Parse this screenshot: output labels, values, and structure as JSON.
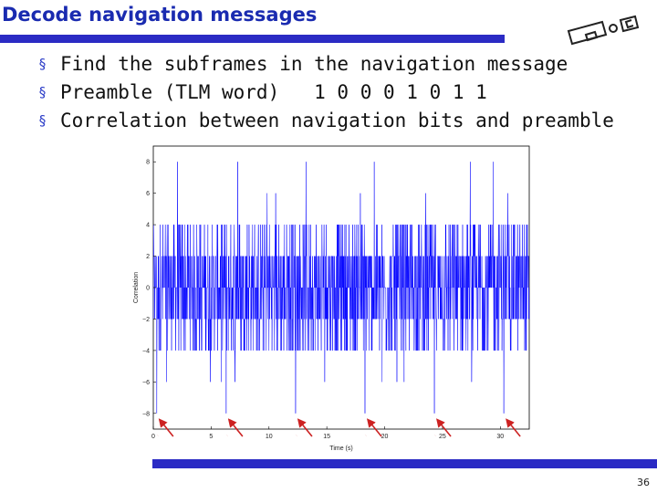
{
  "slide": {
    "title": "Decode navigation messages",
    "bullets": [
      {
        "marker": "§",
        "text": "Find the subframes in the navigation message"
      },
      {
        "marker": "§",
        "text": "Preamble (TLM word)   1 0 0 0 1 0 1 1"
      },
      {
        "marker": "§",
        "text": "Correlation between navigation bits and preamble"
      }
    ],
    "page_number": "36",
    "logo_icon": "logo-icon"
  },
  "colors": {
    "title": "#1a2bb0",
    "bar": "#2b2bc4",
    "signal": "#0000ff",
    "arrow": "#cc2222"
  },
  "chart_data": {
    "type": "line",
    "xlabel": "Time (s)",
    "ylabel": "Correlation",
    "xlim": [
      0,
      32.5
    ],
    "ylim": [
      -9,
      9
    ],
    "xticks": [
      0,
      5,
      10,
      15,
      20,
      25,
      30
    ],
    "yticks": [
      -8,
      -6,
      -4,
      -2,
      0,
      2,
      4,
      6,
      8
    ],
    "sample_period_s": 0.02,
    "levels": [
      -8,
      -6,
      -4,
      -2,
      0,
      2,
      4,
      6,
      8
    ],
    "typical_range": [
      -4,
      4
    ],
    "sidelobe_peaks": [
      -6,
      6
    ],
    "preamble_peaks": [
      {
        "x": 0.3,
        "y": -8
      },
      {
        "x": 6.3,
        "y": -8
      },
      {
        "x": 12.3,
        "y": -8
      },
      {
        "x": 18.3,
        "y": -8
      },
      {
        "x": 24.3,
        "y": -8
      },
      {
        "x": 30.3,
        "y": -8
      }
    ],
    "positive_peaks": [
      {
        "x": 2.1,
        "y": 8
      },
      {
        "x": 7.3,
        "y": 8
      },
      {
        "x": 13.2,
        "y": 8
      },
      {
        "x": 19.1,
        "y": 8
      },
      {
        "x": 27.4,
        "y": 8
      },
      {
        "x": 29.4,
        "y": 8
      }
    ],
    "arrow_targets": [
      0.3,
      6.3,
      12.3,
      18.3,
      24.3,
      30.3
    ]
  }
}
